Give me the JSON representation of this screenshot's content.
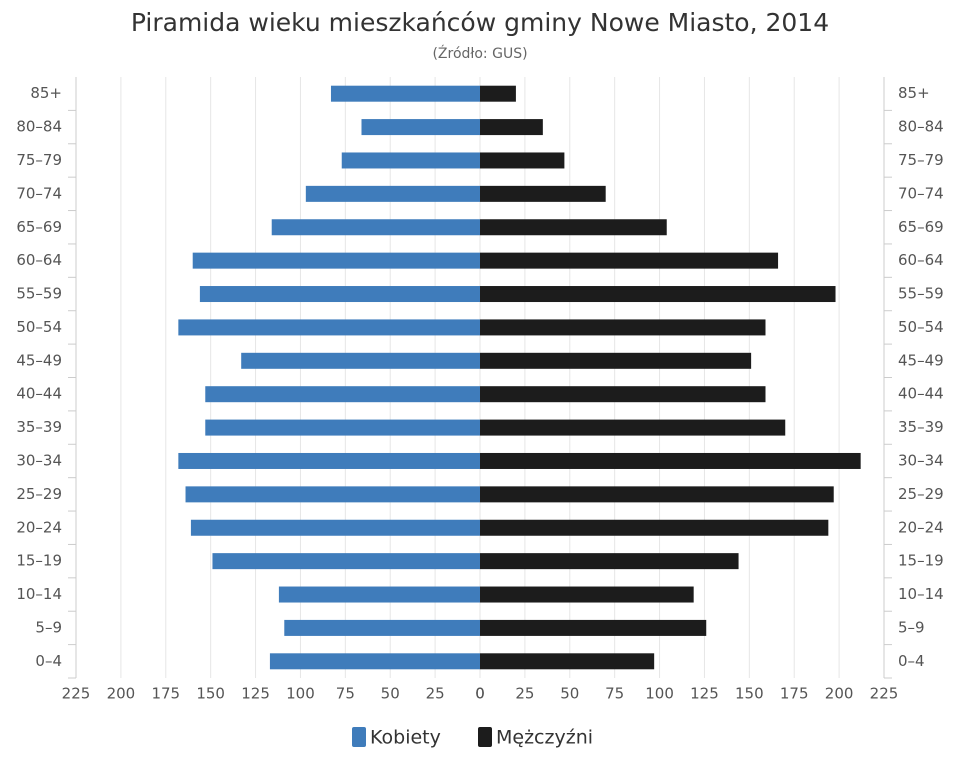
{
  "chart_data": {
    "type": "pyramid",
    "title": "Piramida wieku mieszkańców gminy Nowe Miasto, 2014",
    "subtitle": "(Źródło: GUS)",
    "categories": [
      "0–4",
      "5–9",
      "10–14",
      "15–19",
      "20–24",
      "25–29",
      "30–34",
      "35–39",
      "40–44",
      "45–49",
      "50–54",
      "55–59",
      "60–64",
      "65–69",
      "70–74",
      "75–79",
      "80–84",
      "85+"
    ],
    "series": [
      {
        "name": "Kobiety",
        "color": "#3f7cbb",
        "side": "left",
        "values": [
          117,
          109,
          112,
          149,
          161,
          164,
          168,
          153,
          153,
          133,
          168,
          156,
          160,
          116,
          97,
          77,
          66,
          83
        ]
      },
      {
        "name": "Mężczyźni",
        "color": "#1c1c1c",
        "side": "right",
        "values": [
          97,
          126,
          119,
          144,
          194,
          197,
          212,
          170,
          159,
          151,
          159,
          198,
          166,
          104,
          70,
          47,
          35,
          20
        ]
      }
    ],
    "xlim": [
      0,
      225
    ],
    "xticks": [
      0,
      25,
      50,
      75,
      100,
      125,
      150,
      175,
      200,
      225
    ],
    "grid": true
  }
}
